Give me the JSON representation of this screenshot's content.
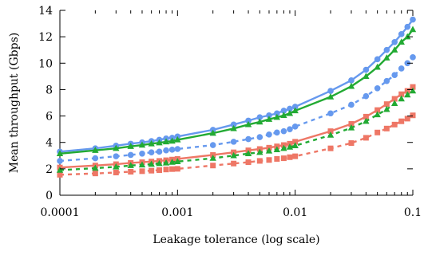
{
  "chart_data": {
    "type": "line",
    "xscale": "log",
    "xlabel": "Leakage tolerance (log scale)",
    "ylabel": "Mean throughput (Gbps)",
    "xlim": [
      0.0001,
      0.1
    ],
    "ylim": [
      0,
      14
    ],
    "xticks": [
      {
        "value": 0.0001,
        "label": "0.0001"
      },
      {
        "value": 0.001,
        "label": "0.001"
      },
      {
        "value": 0.01,
        "label": "0.01"
      },
      {
        "value": 0.1,
        "label": "0.1"
      }
    ],
    "yticks": [
      {
        "value": 0,
        "label": "0"
      },
      {
        "value": 2,
        "label": "2"
      },
      {
        "value": 4,
        "label": "4"
      },
      {
        "value": 6,
        "label": "6"
      },
      {
        "value": 8,
        "label": "8"
      },
      {
        "value": 10,
        "label": "10"
      },
      {
        "value": 12,
        "label": "12"
      },
      {
        "value": 14,
        "label": "14"
      }
    ],
    "grid": false,
    "legend": "none",
    "x": [
      0.0001,
      0.0002,
      0.0003,
      0.0004,
      0.0005,
      0.0006,
      0.0007,
      0.0008,
      0.0009,
      0.001,
      0.002,
      0.003,
      0.004,
      0.005,
      0.006,
      0.007,
      0.008,
      0.009,
      0.01,
      0.02,
      0.03,
      0.04,
      0.05,
      0.06,
      0.07,
      0.08,
      0.09,
      0.1
    ],
    "series": [
      {
        "color": "#6699ee",
        "marker": "circle",
        "dash": "solid",
        "values": [
          3.3,
          3.55,
          3.75,
          3.9,
          4.0,
          4.1,
          4.2,
          4.3,
          4.35,
          4.45,
          4.95,
          5.35,
          5.65,
          5.9,
          6.05,
          6.2,
          6.4,
          6.55,
          6.7,
          7.9,
          8.7,
          9.5,
          10.3,
          11.0,
          11.6,
          12.2,
          12.75,
          13.3
        ]
      },
      {
        "color": "#6699ee",
        "marker": "circle",
        "dash": "dashed",
        "values": [
          2.6,
          2.8,
          2.95,
          3.05,
          3.15,
          3.25,
          3.3,
          3.4,
          3.45,
          3.5,
          3.8,
          4.05,
          4.25,
          4.4,
          4.6,
          4.75,
          4.85,
          5.0,
          5.2,
          6.2,
          6.85,
          7.5,
          8.1,
          8.65,
          9.1,
          9.6,
          10.0,
          10.45
        ]
      },
      {
        "color": "#ee7766",
        "marker": "square",
        "dash": "solid",
        "values": [
          2.1,
          2.25,
          2.35,
          2.45,
          2.5,
          2.55,
          2.6,
          2.65,
          2.7,
          2.75,
          3.05,
          3.25,
          3.4,
          3.5,
          3.6,
          3.7,
          3.8,
          3.9,
          4.05,
          4.85,
          5.4,
          5.95,
          6.45,
          6.9,
          7.3,
          7.65,
          7.9,
          8.2
        ]
      },
      {
        "color": "#ee7766",
        "marker": "square",
        "dash": "dashed",
        "values": [
          1.55,
          1.65,
          1.72,
          1.78,
          1.82,
          1.86,
          1.9,
          1.95,
          1.98,
          2.0,
          2.25,
          2.4,
          2.5,
          2.6,
          2.67,
          2.75,
          2.8,
          2.88,
          2.95,
          3.55,
          3.95,
          4.35,
          4.75,
          5.05,
          5.35,
          5.6,
          5.8,
          6.05
        ]
      },
      {
        "color": "#22aa33",
        "marker": "triangle",
        "dash": "solid",
        "values": [
          3.15,
          3.4,
          3.55,
          3.7,
          3.8,
          3.9,
          3.97,
          4.05,
          4.1,
          4.2,
          4.7,
          5.05,
          5.35,
          5.55,
          5.75,
          5.9,
          6.05,
          6.2,
          6.4,
          7.45,
          8.25,
          9.0,
          9.7,
          10.4,
          11.0,
          11.6,
          12.0,
          12.55
        ]
      },
      {
        "color": "#22aa33",
        "marker": "triangle",
        "dash": "dashed",
        "values": [
          1.9,
          2.05,
          2.15,
          2.25,
          2.3,
          2.35,
          2.4,
          2.45,
          2.5,
          2.55,
          2.8,
          3.0,
          3.15,
          3.25,
          3.35,
          3.45,
          3.55,
          3.65,
          3.75,
          4.55,
          5.1,
          5.6,
          6.1,
          6.5,
          6.95,
          7.3,
          7.6,
          7.9
        ]
      }
    ]
  }
}
